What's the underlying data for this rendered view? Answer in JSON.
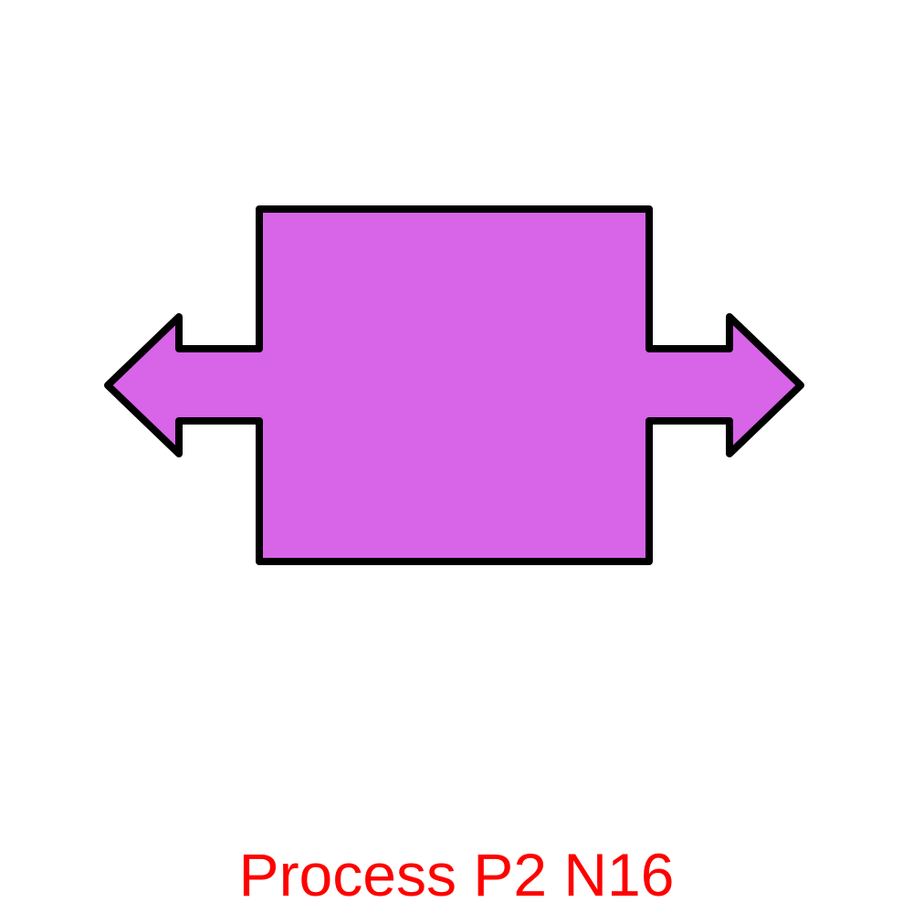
{
  "shape": {
    "name": "bidirectional-arrow-process",
    "fill_color": "#d864e8",
    "stroke_color": "#000000"
  },
  "caption": {
    "text": "Process P2 N16",
    "color": "#ff0000"
  }
}
